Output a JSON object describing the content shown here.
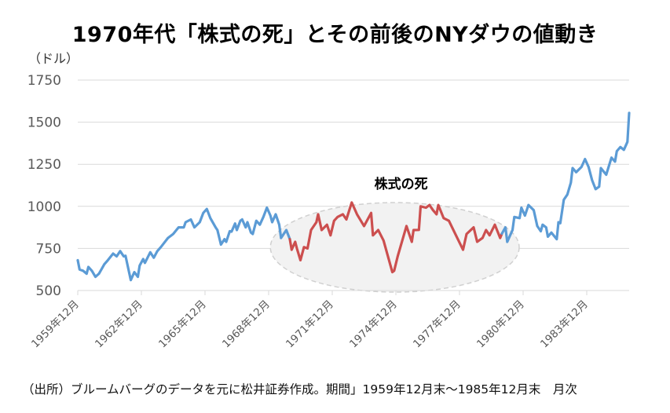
{
  "chart_data": {
    "type": "line",
    "title": "1970年代「株式の死」とその前後のNYダウの値動き",
    "ylabel": "（ドル）",
    "xlabel": "",
    "ylim": [
      500,
      1750
    ],
    "yticks": [
      500,
      750,
      1000,
      1250,
      1500,
      1750
    ],
    "xlim": [
      "1959-12",
      "1985-12"
    ],
    "xticks": [
      "1959-12",
      "1962-12",
      "1965-12",
      "1968-12",
      "1971-12",
      "1974-12",
      "1977-12",
      "1980-12",
      "1983-12"
    ],
    "xtick_labels": [
      "1959年12月",
      "1962年12月",
      "1965年12月",
      "1968年12月",
      "1971年12月",
      "1974年12月",
      "1977年12月",
      "1980年12月",
      "1983年12月"
    ],
    "grid": "horizontal",
    "annotation": {
      "label": "株式の死",
      "range": [
        "1970-01",
        "1979-12"
      ],
      "shape": "dashed ellipse"
    },
    "colors": {
      "normal": "#5b9bd5",
      "highlight": "#cc4f4f",
      "ellipse_fill": "#f2f2f2",
      "ellipse_stroke": "#d0d0d0",
      "grid": "#d9d9d9",
      "tick_text": "#595959"
    },
    "series": [
      {
        "color": "#5b9bd5",
        "points": [
          [
            "1959-12",
            680
          ],
          [
            "1960-01",
            625
          ],
          [
            "1960-03",
            617
          ],
          [
            "1960-05",
            600
          ],
          [
            "1960-06",
            640
          ],
          [
            "1960-08",
            617
          ],
          [
            "1960-10",
            581
          ],
          [
            "1960-12",
            600
          ],
          [
            "1961-03",
            656
          ],
          [
            "1961-05",
            680
          ],
          [
            "1961-08",
            719
          ],
          [
            "1961-10",
            703
          ],
          [
            "1961-12",
            734
          ],
          [
            "1962-02",
            703
          ],
          [
            "1962-03",
            706
          ],
          [
            "1962-06",
            562
          ],
          [
            "1962-08",
            609
          ],
          [
            "1962-10",
            581
          ],
          [
            "1962-11",
            648
          ],
          [
            "1963-01",
            687
          ],
          [
            "1963-02",
            664
          ],
          [
            "1963-05",
            727
          ],
          [
            "1963-07",
            695
          ],
          [
            "1963-09",
            734
          ],
          [
            "1963-11",
            758
          ],
          [
            "1964-03",
            812
          ],
          [
            "1964-06",
            836
          ],
          [
            "1964-09",
            875
          ],
          [
            "1964-12",
            875
          ],
          [
            "1965-01",
            906
          ],
          [
            "1965-04",
            922
          ],
          [
            "1965-06",
            875
          ],
          [
            "1965-09",
            906
          ],
          [
            "1965-11",
            961
          ],
          [
            "1966-01",
            984
          ],
          [
            "1966-03",
            930
          ],
          [
            "1966-06",
            875
          ],
          [
            "1966-07",
            859
          ],
          [
            "1966-09",
            773
          ],
          [
            "1966-11",
            805
          ],
          [
            "1966-12",
            789
          ],
          [
            "1967-02",
            852
          ],
          [
            "1967-03",
            850
          ],
          [
            "1967-05",
            898
          ],
          [
            "1967-06",
            859
          ],
          [
            "1967-08",
            914
          ],
          [
            "1967-09",
            922
          ],
          [
            "1967-11",
            875
          ],
          [
            "1967-12",
            906
          ],
          [
            "1968-02",
            844
          ],
          [
            "1968-03",
            836
          ],
          [
            "1968-05",
            914
          ],
          [
            "1968-07",
            891
          ],
          [
            "1968-09",
            937
          ],
          [
            "1968-11",
            992
          ],
          [
            "1969-01",
            945
          ],
          [
            "1969-02",
            906
          ],
          [
            "1969-04",
            953
          ],
          [
            "1969-06",
            891
          ],
          [
            "1969-07",
            812
          ],
          [
            "1969-10",
            859
          ],
          [
            "1969-12",
            805
          ]
        ]
      },
      {
        "color": "#cc4f4f",
        "points": [
          [
            "1969-12",
            805
          ],
          [
            "1970-01",
            742
          ],
          [
            "1970-03",
            789
          ],
          [
            "1970-04",
            750
          ],
          [
            "1970-06",
            680
          ],
          [
            "1970-08",
            758
          ],
          [
            "1970-10",
            750
          ],
          [
            "1970-12",
            859
          ],
          [
            "1971-03",
            906
          ],
          [
            "1971-04",
            953
          ],
          [
            "1971-06",
            859
          ],
          [
            "1971-09",
            891
          ],
          [
            "1971-11",
            828
          ],
          [
            "1972-01",
            914
          ],
          [
            "1972-03",
            937
          ],
          [
            "1972-06",
            953
          ],
          [
            "1972-08",
            922
          ],
          [
            "1972-11",
            1023
          ],
          [
            "1973-02",
            953
          ],
          [
            "1973-06",
            883
          ],
          [
            "1973-10",
            961
          ],
          [
            "1973-11",
            828
          ],
          [
            "1974-02",
            859
          ],
          [
            "1974-05",
            797
          ],
          [
            "1974-10",
            609
          ],
          [
            "1974-11",
            617
          ],
          [
            "1975-01",
            703
          ],
          [
            "1975-06",
            883
          ],
          [
            "1975-09",
            789
          ],
          [
            "1975-10",
            859
          ],
          [
            "1976-01",
            860
          ],
          [
            "1976-02",
            1000
          ],
          [
            "1976-05",
            992
          ],
          [
            "1976-07",
            1008
          ],
          [
            "1976-09",
            977
          ],
          [
            "1976-11",
            953
          ],
          [
            "1976-12",
            1008
          ],
          [
            "1977-03",
            930
          ],
          [
            "1977-06",
            914
          ],
          [
            "1977-10",
            828
          ],
          [
            "1978-02",
            742
          ],
          [
            "1978-04",
            836
          ],
          [
            "1978-08",
            875
          ],
          [
            "1978-10",
            789
          ],
          [
            "1979-01",
            812
          ],
          [
            "1979-03",
            859
          ],
          [
            "1979-05",
            828
          ],
          [
            "1979-08",
            891
          ],
          [
            "1979-11",
            812
          ],
          [
            "1979-12",
            838
          ]
        ]
      },
      {
        "color": "#5b9bd5",
        "points": [
          [
            "1979-12",
            838
          ],
          [
            "1980-02",
            875
          ],
          [
            "1980-03",
            789
          ],
          [
            "1980-06",
            859
          ],
          [
            "1980-07",
            937
          ],
          [
            "1980-10",
            930
          ],
          [
            "1980-11",
            992
          ],
          [
            "1981-01",
            945
          ],
          [
            "1981-03",
            1008
          ],
          [
            "1981-06",
            977
          ],
          [
            "1981-08",
            883
          ],
          [
            "1981-10",
            852
          ],
          [
            "1981-11",
            891
          ],
          [
            "1982-01",
            875
          ],
          [
            "1982-02",
            820
          ],
          [
            "1982-04",
            844
          ],
          [
            "1982-07",
            805
          ],
          [
            "1982-08",
            906
          ],
          [
            "1982-09",
            900
          ],
          [
            "1982-11",
            1039
          ],
          [
            "1983-01",
            1070
          ],
          [
            "1983-03",
            1141
          ],
          [
            "1983-04",
            1227
          ],
          [
            "1983-06",
            1203
          ],
          [
            "1983-09",
            1234
          ],
          [
            "1983-11",
            1281
          ],
          [
            "1984-01",
            1234
          ],
          [
            "1984-03",
            1156
          ],
          [
            "1984-05",
            1102
          ],
          [
            "1984-07",
            1117
          ],
          [
            "1984-08",
            1227
          ],
          [
            "1984-11",
            1188
          ],
          [
            "1985-02",
            1289
          ],
          [
            "1985-04",
            1266
          ],
          [
            "1985-05",
            1328
          ],
          [
            "1985-07",
            1352
          ],
          [
            "1985-09",
            1336
          ],
          [
            "1985-11",
            1383
          ],
          [
            "1985-12",
            1555
          ]
        ]
      }
    ]
  },
  "footer": "（出所）ブルームバーグのデータを元に松井証券作成。期間」1959年12月末～1985年12月末　月次"
}
